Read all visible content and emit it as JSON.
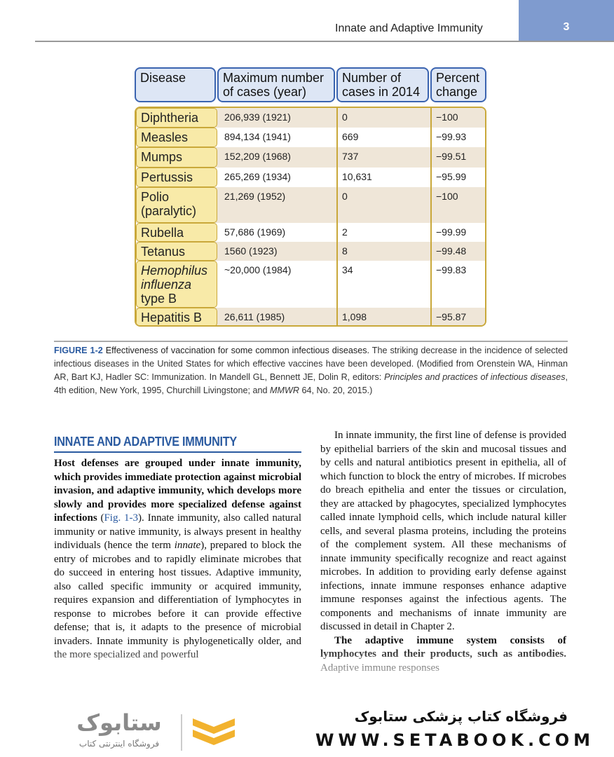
{
  "header": {
    "title": "Innate and Adaptive Immunity",
    "page_number": "3"
  },
  "table": {
    "headers": [
      "Disease",
      "Maximum number of cases (year)",
      "Number of cases in 2014",
      "Percent change"
    ],
    "rows": [
      [
        [
          {
            "text": "Diphtheria"
          }
        ],
        "206,939 (1921)",
        "0",
        "−100"
      ],
      [
        [
          {
            "text": "Measles"
          }
        ],
        "894,134 (1941)",
        "669",
        "−99.93"
      ],
      [
        [
          {
            "text": "Mumps"
          }
        ],
        "152,209 (1968)",
        "737",
        "−99.51"
      ],
      [
        [
          {
            "text": "Pertussis"
          }
        ],
        "265,269 (1934)",
        "10,631",
        "−95.99"
      ],
      [
        [
          {
            "text": "Polio (paralytic)"
          }
        ],
        "21,269 (1952)",
        "0",
        "−100"
      ],
      [
        [
          {
            "text": "Rubella"
          }
        ],
        "57,686 (1969)",
        "2",
        "−99.99"
      ],
      [
        [
          {
            "text": "Tetanus"
          }
        ],
        "1560 (1923)",
        "8",
        "−99.48"
      ],
      [
        [
          {
            "text": "Hemophilus influenza",
            "style": "italic"
          },
          {
            "text": " type B"
          }
        ],
        "~20,000 (1984)",
        "34",
        "−99.83"
      ],
      [
        [
          {
            "text": "Hepatitis B"
          }
        ],
        "26,611 (1985)",
        "1,098",
        "−95.87"
      ]
    ]
  },
  "caption": [
    {
      "text": "FIGURE 1-2",
      "style": "label"
    },
    {
      "text": " Effectiveness of vaccination for some common infectious diseases.",
      "style": "lead"
    },
    {
      "text": " The striking decrease in the incidence of selected infectious diseases in the United States for which effective vaccines have been developed. (Modified from Orenstein WA, Hinman AR, Bart KJ, Hadler SC: Immunization. In Mandell GL, Bennett JE, Dolin R, editors: "
    },
    {
      "text": "Principles and practices of infectious diseases",
      "style": "italic"
    },
    {
      "text": ", 4th edition, New York, 1995, Churchill Livingstone; and "
    },
    {
      "text": "MMWR",
      "style": "italic"
    },
    {
      "text": " 64, No. 20, 2015.)"
    }
  ],
  "section": {
    "heading": "INNATE AND ADAPTIVE IMMUNITY",
    "columns": [
      [
        [
          {
            "text": "Host defenses are grouped under innate immunity, which provides immediate protection against microbial invasion, and adaptive immunity, which develops more slowly and provides more specialized defense against infections",
            "style": "bold"
          },
          {
            "text": " ("
          },
          {
            "text": "Fig. 1-3",
            "style": "link"
          },
          {
            "text": "). Innate immunity, also called natural immunity or native immunity, is always present in healthy individuals (hence the term "
          },
          {
            "text": "innate",
            "style": "italic"
          },
          {
            "text": "), prepared to block the entry of microbes and to rapidly eliminate microbes that do succeed in entering host tissues. Adaptive immunity, also called specific immunity or acquired immunity, requires expansion and differentiation of lymphocytes in response to microbes before it can provide effective defense; that is, it adapts to the presence of microbial invaders. Innate immunity is phylogenetically older, and the more specialized and powerful"
          }
        ]
      ],
      [
        [
          {
            "text": "In innate immunity, the first line of defense is provided by epithelial barriers of the skin and mucosal tissues and by cells and natural antibiotics present in epithelia, all of which function to block the entry of microbes. If microbes do breach epithelia and enter the tissues or circulation, they are attacked by phagocytes, specialized lymphocytes called innate lymphoid cells, which include natural killer cells, and several plasma proteins, including the proteins of the complement system. All these mechanisms of innate immunity specifically recognize and react against microbes. In addition to providing early defense against infections, innate immune responses enhance adaptive immune responses against the infectious agents. The components and mechanisms of innate immunity are discussed in detail in Chapter 2."
          }
        ],
        [
          {
            "text": "The adaptive immune system consists of lymphocytes and their products, such as antibodies.",
            "style": "bold"
          },
          {
            "text": " Adaptive immune responses"
          }
        ]
      ]
    ]
  },
  "watermark": {
    "logo_text": "ستابوک",
    "logo_subtitle": "فروشگاه اینترنتی کتاب",
    "store_name": "فروشگاه کتاب پزشکی ستابوک",
    "url": "WWW.SETABOOK.COM"
  }
}
